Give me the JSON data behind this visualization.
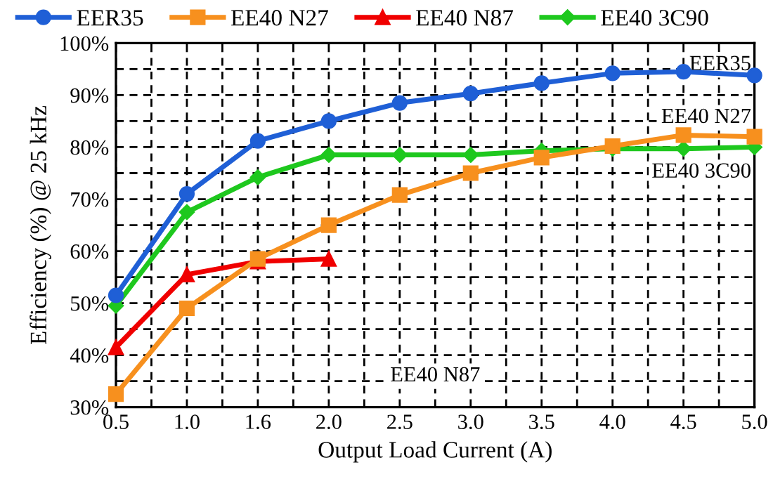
{
  "chart_data": {
    "type": "line",
    "xlabel": "Output Load Current (A)",
    "ylabel": "Efficiency (%) @ 25 kHz",
    "categories": [
      "0.5",
      "1.0",
      "1.6",
      "2.0",
      "2.5",
      "3.0",
      "3.5",
      "4.0",
      "4.5",
      "5.0"
    ],
    "series": [
      {
        "name": "EER35",
        "color": "#1f5fd6",
        "marker": "circle",
        "values": [
          51.5,
          71,
          81.2,
          85,
          88.5,
          90.3,
          92.3,
          94.2,
          94.5,
          93.8
        ]
      },
      {
        "name": "EE40 N27",
        "color": "#f7901e",
        "marker": "square",
        "values": [
          32.5,
          49,
          58.5,
          65,
          70.8,
          75,
          78,
          80.2,
          82.3,
          82
        ]
      },
      {
        "name": "EE40 N87",
        "color": "#f00000",
        "marker": "triangle",
        "values": [
          41.5,
          55.5,
          58,
          58.5,
          null,
          null,
          null,
          null,
          null,
          null
        ]
      },
      {
        "name": "EE40 3C90",
        "color": "#1ec81e",
        "marker": "diamond",
        "values": [
          49.5,
          67.5,
          74.2,
          78.5,
          78.5,
          78.5,
          79.3,
          79.7,
          79.7,
          80
        ]
      }
    ],
    "ylim": [
      30,
      100
    ],
    "yticks": [
      {
        "value": 30,
        "label": "30%"
      },
      {
        "value": 35,
        "label": null
      },
      {
        "value": 40,
        "label": "40%"
      },
      {
        "value": 45,
        "label": null
      },
      {
        "value": 50,
        "label": "50%"
      },
      {
        "value": 55,
        "label": null
      },
      {
        "value": 60,
        "label": "60%"
      },
      {
        "value": 65,
        "label": null
      },
      {
        "value": 70,
        "label": "70%"
      },
      {
        "value": 75,
        "label": null
      },
      {
        "value": 80,
        "label": "80%"
      },
      {
        "value": 85,
        "label": null
      },
      {
        "value": 90,
        "label": "90%"
      },
      {
        "value": 95,
        "label": null
      },
      {
        "value": 100,
        "label": "100%"
      }
    ],
    "grid": true,
    "legend": "top",
    "line_style": "solid",
    "annotations": [
      "EER35",
      "EE40 N27",
      "EE40 3C90",
      "EE40 N87"
    ]
  }
}
